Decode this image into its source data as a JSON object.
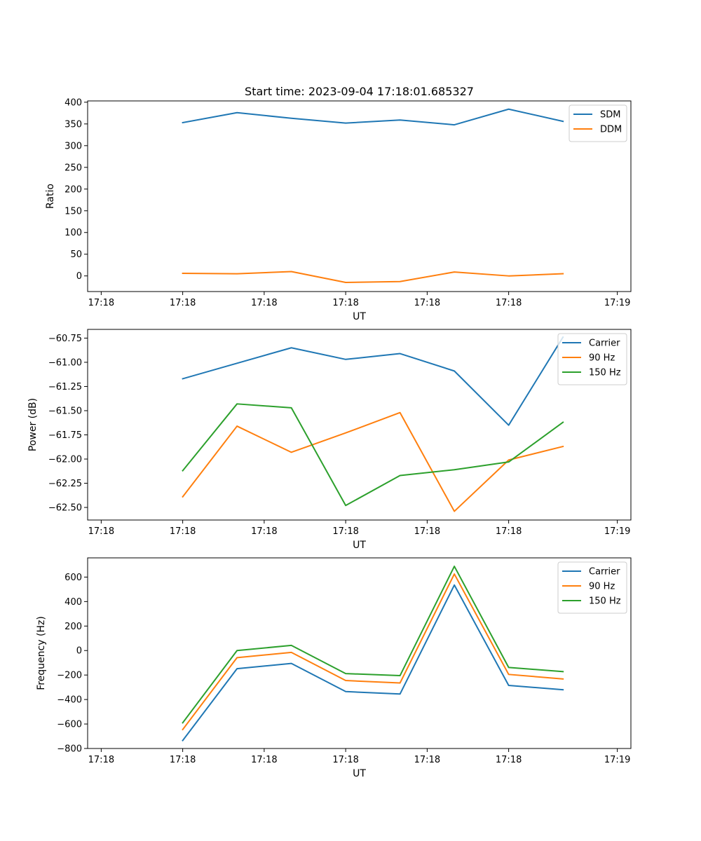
{
  "chart_data": [
    {
      "type": "line",
      "title": "Start time: 2023-09-04 17:18:01.685327",
      "xlabel": "UT",
      "ylabel": "Ratio",
      "x_tick_labels": [
        "17:18",
        "17:18",
        "17:18",
        "17:18",
        "17:18",
        "17:18",
        "17:19"
      ],
      "y_ticks": [
        0,
        50,
        100,
        150,
        200,
        250,
        300,
        350,
        400
      ],
      "y_tick_labels": [
        "0",
        "50",
        "100",
        "150",
        "200",
        "250",
        "300",
        "350",
        "400"
      ],
      "ylim": [
        -36,
        403
      ],
      "x": [
        1,
        2,
        3,
        4,
        5,
        6,
        7,
        8
      ],
      "xlim": [
        -0.75,
        9.25
      ],
      "legend_position": "top-right",
      "series": [
        {
          "name": "SDM",
          "color": "#1f77b4",
          "values": [
            353,
            376,
            363,
            352,
            359,
            348,
            384,
            356
          ]
        },
        {
          "name": "DDM",
          "color": "#ff7f0e",
          "values": [
            6,
            5,
            10,
            -15,
            -13,
            9,
            0,
            5
          ]
        }
      ]
    },
    {
      "type": "line",
      "title": "",
      "xlabel": "UT",
      "ylabel": "Power (dB)",
      "x_tick_labels": [
        "17:18",
        "17:18",
        "17:18",
        "17:18",
        "17:18",
        "17:18",
        "17:19"
      ],
      "y_ticks": [
        -62.5,
        -62.25,
        -62.0,
        -61.75,
        -61.5,
        -61.25,
        -61.0,
        -60.75
      ],
      "y_tick_labels": [
        "−62.50",
        "−62.25",
        "−62.00",
        "−61.75",
        "−61.50",
        "−61.25",
        "−61.00",
        "−60.75"
      ],
      "ylim": [
        -62.63,
        -60.66
      ],
      "x": [
        1,
        2,
        3,
        4,
        5,
        6,
        7,
        8
      ],
      "xlim": [
        -0.75,
        9.25
      ],
      "legend_position": "top-right",
      "series": [
        {
          "name": "Carrier",
          "color": "#1f77b4",
          "values": [
            -61.17,
            -61.01,
            -60.85,
            -60.97,
            -60.91,
            -61.09,
            -61.65,
            -60.74
          ]
        },
        {
          "name": "90 Hz",
          "color": "#ff7f0e",
          "values": [
            -62.39,
            -61.66,
            -61.93,
            -61.73,
            -61.52,
            -62.54,
            -62.01,
            -61.87
          ]
        },
        {
          "name": "150 Hz",
          "color": "#2ca02c",
          "values": [
            -62.12,
            -61.43,
            -61.47,
            -62.48,
            -62.17,
            -62.11,
            -62.03,
            -61.62
          ]
        }
      ]
    },
    {
      "type": "line",
      "title": "",
      "xlabel": "UT",
      "ylabel": "Frequency (Hz)",
      "x_tick_labels": [
        "17:18",
        "17:18",
        "17:18",
        "17:18",
        "17:18",
        "17:18",
        "17:19"
      ],
      "y_ticks": [
        -800,
        -600,
        -400,
        -200,
        0,
        200,
        400,
        600
      ],
      "y_tick_labels": [
        "−800",
        "−600",
        "−400",
        "−200",
        "0",
        "200",
        "400",
        "600"
      ],
      "ylim": [
        -800,
        757
      ],
      "x": [
        1,
        2,
        3,
        4,
        5,
        6,
        7,
        8
      ],
      "xlim": [
        -0.75,
        9.25
      ],
      "legend_position": "top-right",
      "series": [
        {
          "name": "Carrier",
          "color": "#1f77b4",
          "values": [
            -735,
            -148,
            -105,
            -335,
            -355,
            535,
            -285,
            -320
          ]
        },
        {
          "name": "90 Hz",
          "color": "#ff7f0e",
          "values": [
            -645,
            -58,
            -15,
            -245,
            -265,
            625,
            -195,
            -232
          ]
        },
        {
          "name": "150 Hz",
          "color": "#2ca02c",
          "values": [
            -590,
            0,
            42,
            -188,
            -205,
            688,
            -138,
            -172
          ]
        }
      ]
    }
  ]
}
